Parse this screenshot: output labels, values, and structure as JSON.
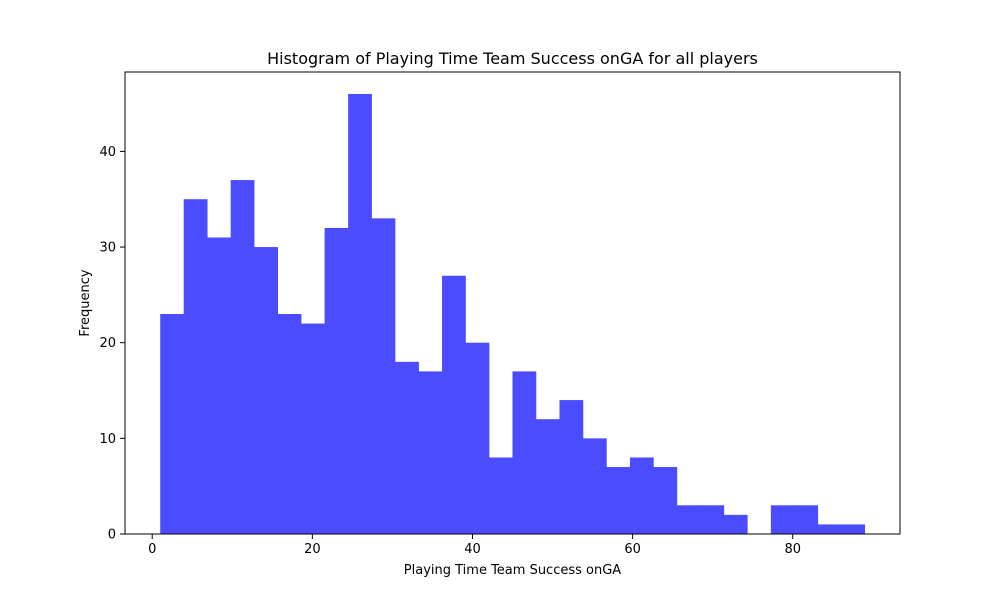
{
  "chart_data": {
    "type": "bar",
    "title": "Histogram of Playing Time Team Success onGA for all players",
    "xlabel": "Playing Time Team Success onGA",
    "ylabel": "Frequency",
    "xlim": [
      -3.4,
      93.4
    ],
    "ylim": [
      0,
      48.3
    ],
    "bar_color": "#4b4bff",
    "grid": false,
    "legend": false,
    "bins": [
      {
        "x0": 1.0,
        "x1": 3.93,
        "value": 23
      },
      {
        "x0": 3.93,
        "x1": 6.87,
        "value": 35
      },
      {
        "x0": 6.87,
        "x1": 9.8,
        "value": 31
      },
      {
        "x0": 9.8,
        "x1": 12.73,
        "value": 37
      },
      {
        "x0": 12.73,
        "x1": 15.67,
        "value": 30
      },
      {
        "x0": 15.67,
        "x1": 18.6,
        "value": 23
      },
      {
        "x0": 18.6,
        "x1": 21.53,
        "value": 22
      },
      {
        "x0": 21.53,
        "x1": 24.47,
        "value": 32
      },
      {
        "x0": 24.47,
        "x1": 27.4,
        "value": 46
      },
      {
        "x0": 27.4,
        "x1": 30.33,
        "value": 33
      },
      {
        "x0": 30.33,
        "x1": 33.27,
        "value": 18
      },
      {
        "x0": 33.27,
        "x1": 36.2,
        "value": 17
      },
      {
        "x0": 36.2,
        "x1": 39.13,
        "value": 27
      },
      {
        "x0": 39.13,
        "x1": 42.07,
        "value": 20
      },
      {
        "x0": 42.07,
        "x1": 45.0,
        "value": 8
      },
      {
        "x0": 45.0,
        "x1": 47.93,
        "value": 17
      },
      {
        "x0": 47.93,
        "x1": 50.87,
        "value": 12
      },
      {
        "x0": 50.87,
        "x1": 53.8,
        "value": 14
      },
      {
        "x0": 53.8,
        "x1": 56.73,
        "value": 10
      },
      {
        "x0": 56.73,
        "x1": 59.67,
        "value": 7
      },
      {
        "x0": 59.67,
        "x1": 62.6,
        "value": 8
      },
      {
        "x0": 62.6,
        "x1": 65.53,
        "value": 7
      },
      {
        "x0": 65.53,
        "x1": 68.47,
        "value": 3
      },
      {
        "x0": 68.47,
        "x1": 71.4,
        "value": 3
      },
      {
        "x0": 71.4,
        "x1": 74.33,
        "value": 2
      },
      {
        "x0": 74.33,
        "x1": 77.27,
        "value": 0
      },
      {
        "x0": 77.27,
        "x1": 80.2,
        "value": 3
      },
      {
        "x0": 80.2,
        "x1": 83.13,
        "value": 3
      },
      {
        "x0": 83.13,
        "x1": 86.07,
        "value": 1
      },
      {
        "x0": 86.07,
        "x1": 89.0,
        "value": 1
      }
    ],
    "xticks": [
      0,
      20,
      40,
      60,
      80
    ],
    "xtick_labels": [
      "0",
      "20",
      "40",
      "60",
      "80"
    ],
    "yticks": [
      0,
      10,
      20,
      30,
      40
    ],
    "ytick_labels": [
      "0",
      "10",
      "20",
      "30",
      "40"
    ]
  }
}
